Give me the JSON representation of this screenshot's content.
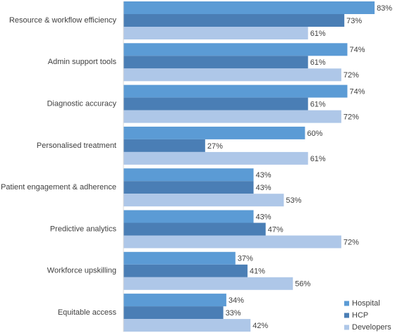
{
  "chart_data": {
    "type": "bar",
    "orientation": "horizontal",
    "categories": [
      "Resource & workflow efficiency",
      "Admin support tools",
      "Diagnostic accuracy",
      "Personalised treatment",
      "Patient engagement & adherence",
      "Predictive analytics",
      "Workforce upskilling",
      "Equitable access"
    ],
    "series": [
      {
        "name": "Hospital",
        "color": "#5b9bd5",
        "values": [
          83,
          74,
          74,
          60,
          43,
          43,
          37,
          34
        ],
        "value_labels": [
          "83%",
          "74%",
          "74%",
          "60%",
          "43%",
          "43%",
          "37%",
          "34%"
        ]
      },
      {
        "name": "HCP",
        "color": "#4a7eb5",
        "values": [
          73,
          61,
          61,
          27,
          43,
          47,
          41,
          33
        ],
        "value_labels": [
          "73%",
          "61%",
          "61%",
          "27%",
          "43%",
          "47%",
          "41%",
          "33%"
        ]
      },
      {
        "name": "Developers",
        "color": "#aec7e8",
        "values": [
          61,
          72,
          72,
          61,
          53,
          72,
          56,
          42
        ],
        "value_labels": [
          "61%",
          "72%",
          "72%",
          "61%",
          "53%",
          "72%",
          "56%",
          "42%"
        ]
      }
    ],
    "xlim": [
      0,
      100
    ],
    "legend": "lower right"
  }
}
